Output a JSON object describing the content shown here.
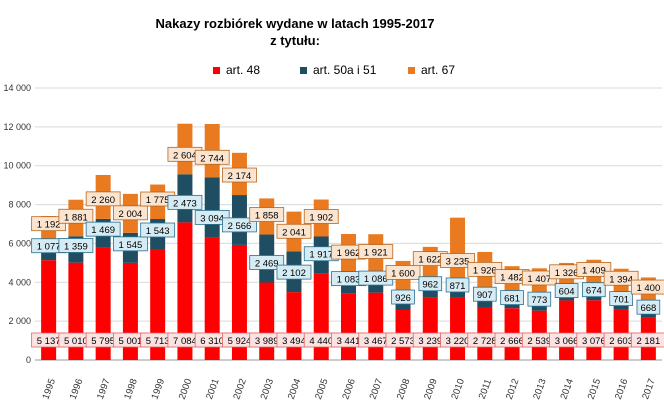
{
  "chart_data": {
    "type": "bar",
    "stacked": true,
    "title": [
      "Nakazy rozbiórek wydane w latach 1995-2017",
      "z tytułu:"
    ],
    "categories": [
      "1995",
      "1996",
      "1997",
      "1998",
      "1999",
      "2000",
      "2001",
      "2002",
      "2003",
      "2004",
      "2005",
      "2006",
      "2007",
      "2008",
      "2009",
      "2010",
      "2011",
      "2012",
      "2013",
      "2014",
      "2015",
      "2016",
      "2017"
    ],
    "series": [
      {
        "name": "art. 48",
        "color": "#ff0000",
        "label_fill": "#fbe3e3",
        "label_stroke": "#e06666",
        "values": [
          5137,
          5010,
          5795,
          5001,
          5713,
          7084,
          6310,
          5924,
          3989,
          3494,
          4440,
          3441,
          3467,
          2573,
          3239,
          3220,
          2728,
          2666,
          2539,
          3066,
          3076,
          2603,
          2181
        ],
        "labels": [
          "5 137",
          "5 010",
          "5 795",
          "5 001",
          "5 713",
          "7 084",
          "6 310",
          "5 924",
          "3 989",
          "3 494",
          "4 440",
          "3 441",
          "3 467",
          "2 573",
          "3 239",
          "3 220",
          "2 728",
          "2 666",
          "2 539",
          "3 066",
          "3 076",
          "2 603",
          "2 181"
        ]
      },
      {
        "name": "art. 50a i 51",
        "color": "#1f4e63",
        "label_fill": "#d6ecf4",
        "label_stroke": "#2a6f8f",
        "values": [
          1077,
          1359,
          1469,
          1545,
          1543,
          2473,
          3094,
          2566,
          2469,
          2102,
          1917,
          1083,
          1086,
          926,
          962,
          871,
          907,
          681,
          773,
          604,
          674,
          701,
          668
        ],
        "labels": [
          "1 077",
          "1 359",
          "1 469",
          "1 545",
          "1 543",
          "2 473",
          "3 094",
          "2 566",
          "2 469",
          "2 102",
          "1 917",
          "1 083",
          "1 086",
          "926",
          "962",
          "871",
          "907",
          "681",
          "773",
          "604",
          "674",
          "701",
          "668"
        ]
      },
      {
        "name": "art. 67",
        "color": "#e97a1f",
        "label_fill": "#fbe5d0",
        "label_stroke": "#b8651d",
        "values": [
          1192,
          1881,
          2260,
          2004,
          1775,
          2604,
          2744,
          2174,
          1858,
          2041,
          1902,
          1962,
          1921,
          1600,
          1622,
          3235,
          1926,
          1482,
          1407,
          1326,
          1409,
          1394,
          1400
        ],
        "labels": [
          "1 192",
          "1 881",
          "2 260",
          "2 004",
          "1 775",
          "2 604",
          "2 744",
          "2 174",
          "1 858",
          "2 041",
          "1 902",
          "1 962",
          "1 921",
          "1 600",
          "1 622",
          "3 235",
          "1 926",
          "1 482",
          "1 407",
          "1 326",
          "1 409",
          "1 394",
          "1 400"
        ]
      }
    ],
    "ylim": [
      0,
      14000
    ],
    "yticks": [
      "0",
      "2 000",
      "4 000",
      "6 000",
      "8 000",
      "10 000",
      "12 000",
      "14 000"
    ],
    "ytick_values": [
      0,
      2000,
      4000,
      6000,
      8000,
      10000,
      12000,
      14000
    ],
    "grid": true,
    "legend_position": "top"
  }
}
